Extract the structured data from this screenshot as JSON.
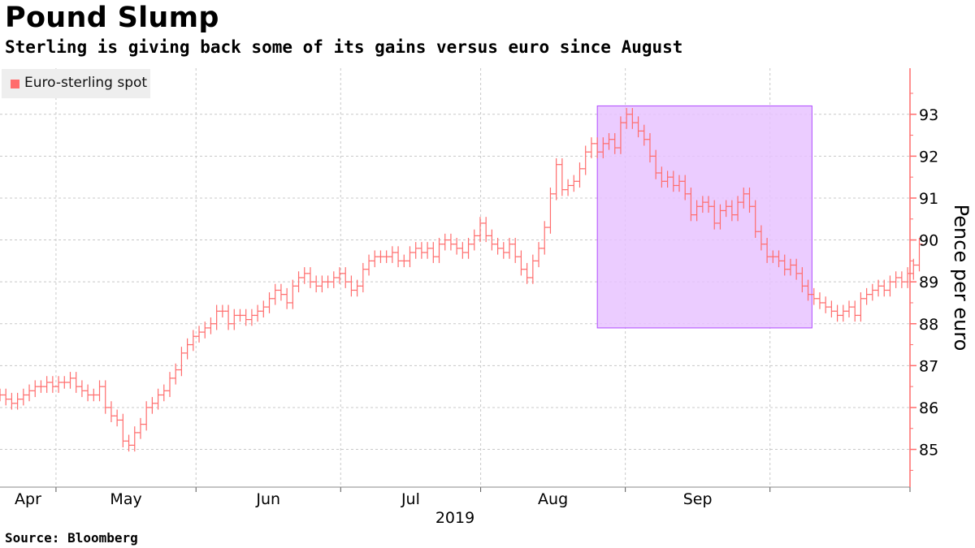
{
  "header": {
    "title": "Pound Slump",
    "subtitle": "Sterling is giving back some of its gains versus euro since August"
  },
  "footer": {
    "source": "Source: Bloomberg"
  },
  "colors": {
    "series": "#ff6c6c",
    "highlight_fill": "#e8c3ff",
    "highlight_stroke": "#b04bff",
    "grid": "#c8c8c8"
  },
  "chart_data": {
    "type": "line",
    "title": "Pound Slump",
    "subtitle": "Sterling is giving back some of its gains versus euro since August",
    "ylabel": "Pence per euro",
    "xlabel": "",
    "ylim": [
      84.1,
      94.1
    ],
    "y_ticks": [
      85,
      86,
      87,
      88,
      89,
      90,
      91,
      92,
      93
    ],
    "x_tick_labels": [
      "Apr",
      "May",
      "Jun",
      "Jul",
      "Aug",
      "Sep"
    ],
    "x_year_label": "2019",
    "grid": true,
    "legend": {
      "position": "top-left",
      "entries": [
        "Euro-sterling spot"
      ]
    },
    "series": [
      {
        "name": "Euro-sterling spot",
        "x_start": "2019-03-20",
        "x_end": "2019-10-03",
        "values": [
          86.3,
          86.2,
          86.1,
          86.2,
          86.3,
          86.4,
          86.5,
          86.5,
          86.6,
          86.5,
          86.6,
          86.6,
          86.7,
          86.5,
          86.4,
          86.3,
          86.3,
          86.5,
          86.0,
          85.8,
          85.7,
          85.2,
          85.1,
          85.4,
          85.6,
          86.0,
          86.1,
          86.3,
          86.4,
          86.7,
          86.9,
          87.3,
          87.5,
          87.7,
          87.8,
          87.9,
          88.0,
          88.3,
          88.3,
          88.0,
          88.2,
          88.2,
          88.1,
          88.2,
          88.3,
          88.4,
          88.6,
          88.8,
          88.7,
          88.5,
          88.9,
          89.1,
          89.2,
          89.0,
          88.9,
          89.0,
          89.0,
          89.1,
          89.2,
          89.0,
          88.8,
          88.9,
          89.3,
          89.5,
          89.6,
          89.6,
          89.6,
          89.7,
          89.5,
          89.5,
          89.7,
          89.8,
          89.7,
          89.8,
          89.6,
          89.9,
          90.0,
          89.9,
          89.8,
          89.7,
          89.9,
          90.1,
          90.4,
          90.1,
          89.9,
          89.8,
          89.7,
          89.9,
          89.6,
          89.3,
          89.1,
          89.5,
          89.8,
          90.3,
          91.1,
          91.8,
          91.2,
          91.3,
          91.4,
          91.7,
          92.1,
          92.3,
          92.1,
          92.3,
          92.4,
          92.2,
          92.8,
          93.0,
          92.8,
          92.6,
          92.4,
          92.0,
          91.6,
          91.4,
          91.5,
          91.3,
          91.4,
          91.1,
          90.6,
          90.8,
          90.9,
          90.8,
          90.4,
          90.7,
          90.8,
          90.6,
          90.9,
          91.1,
          90.8,
          90.2,
          89.9,
          89.6,
          89.6,
          89.5,
          89.3,
          89.4,
          89.2,
          88.9,
          88.7,
          88.6,
          88.5,
          88.4,
          88.3,
          88.2,
          88.3,
          88.4,
          88.2,
          88.6,
          88.7,
          88.8,
          88.9,
          88.8,
          89.0,
          89.1,
          89.0,
          89.2,
          89.4,
          89.9
        ]
      }
    ],
    "annotations": [
      {
        "type": "highlight",
        "x_start": "2019-07-26",
        "x_end": "2019-09-10",
        "y_start": 87.9,
        "y_end": 93.2
      }
    ]
  }
}
